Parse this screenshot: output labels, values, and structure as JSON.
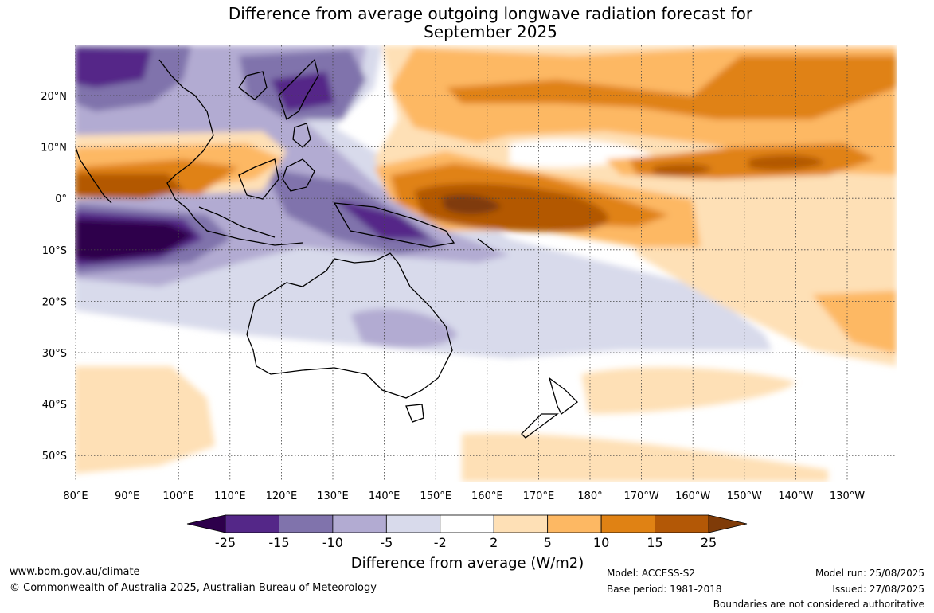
{
  "title": {
    "line1": "Difference from average outgoing longwave radiation forecast for",
    "line2": "September 2025"
  },
  "map": {
    "lon_labels": [
      "80°E",
      "90°E",
      "100°E",
      "110°E",
      "120°E",
      "130°E",
      "140°E",
      "150°E",
      "160°E",
      "170°E",
      "180°",
      "170°W",
      "160°W",
      "150°W",
      "140°W",
      "130°W"
    ],
    "lat_labels": [
      "20°N",
      "10°N",
      "0°",
      "10°S",
      "20°S",
      "30°S",
      "40°S",
      "50°S"
    ]
  },
  "colorbar": {
    "title": "Difference from average (W/m2)",
    "labels": [
      "-25",
      "-15",
      "-10",
      "-5",
      "-2",
      "2",
      "5",
      "10",
      "15",
      "25"
    ],
    "colors": {
      "below_-25": "#2d004b",
      "-25_-15": "#542788",
      "-15_-10": "#8073ac",
      "-10_-5": "#b2abd2",
      "-5_-2": "#d8daeb",
      "-2_2": "#ffffff",
      "2_5": "#fee0b6",
      "5_10": "#fdb863",
      "10_15": "#e08214",
      "15_25": "#b35806",
      "above_25": "#7f3b08"
    }
  },
  "footer": {
    "website": "www.bom.gov.au/climate",
    "copyright": "© Commonwealth of Australia 2025, Australian Bureau of Meteorology",
    "model": "Model: ACCESS-S2",
    "base_period": "Base period: 1981-2018",
    "model_run": "Model run: 25/08/2025",
    "issued": "Issued: 27/08/2025",
    "disclaimer": "Boundaries are not considered authoritative"
  }
}
